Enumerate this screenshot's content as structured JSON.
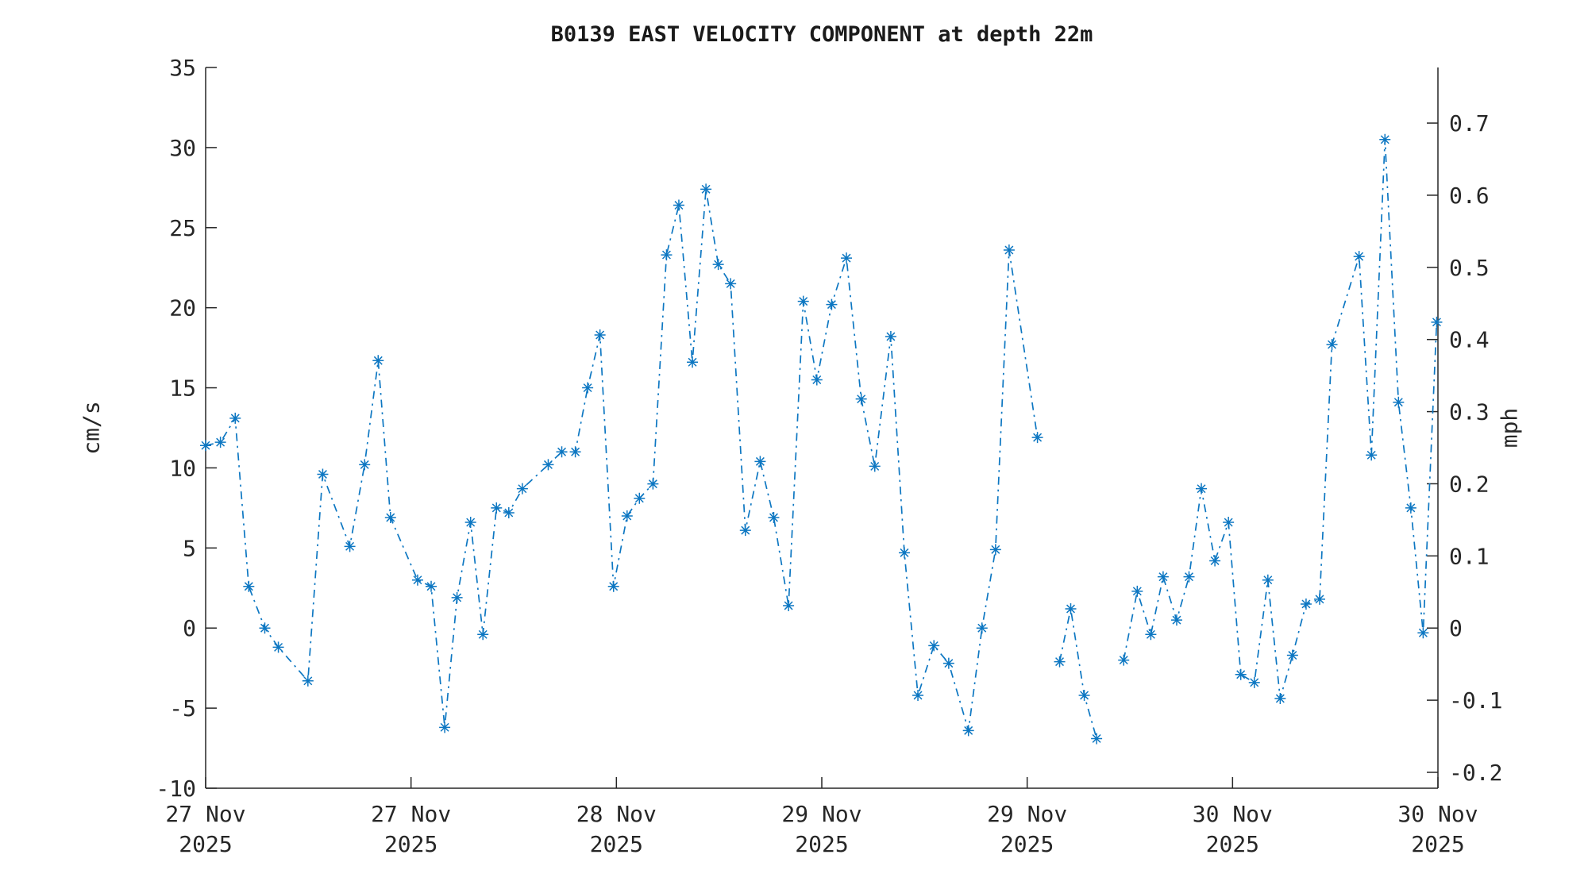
{
  "title": "B0139 EAST VELOCITY COMPONENT at depth 22m",
  "chart_data": {
    "type": "line",
    "title": "B0139 EAST VELOCITY COMPONENT at depth 22m",
    "line_style": "dash-dot",
    "marker": "asterisk",
    "series_color": "#0d77c2",
    "grid": false,
    "legend": "none",
    "left_axis": {
      "label": "cm/s",
      "min": -10,
      "max": 35,
      "ticks": [
        35,
        30,
        25,
        20,
        15,
        10,
        5,
        0,
        -5,
        -10
      ]
    },
    "right_axis": {
      "label": "mph",
      "ticks": [
        "0.7",
        "0.6",
        "0.5",
        "0.4",
        "0.3",
        "0.2",
        "0.1",
        "0",
        "-0.1",
        "-0.2"
      ],
      "cms_per_mph": 45.04
    },
    "x_axis": {
      "tick_labels": [
        [
          "27 Nov",
          "2025"
        ],
        [
          "27 Nov",
          "2025"
        ],
        [
          "28 Nov",
          "2025"
        ],
        [
          "29 Nov",
          "2025"
        ],
        [
          "29 Nov",
          "2025"
        ],
        [
          "30 Nov",
          "2025"
        ],
        [
          "30 Nov",
          "2025"
        ]
      ]
    },
    "series_name": "east velocity component (cm/s)",
    "x_unit": "percent of time axis from 27 Nov 2025 (left edge) to 30 Nov 2025 (right edge)",
    "segments": [
      [
        [
          0.0,
          11.4
        ],
        [
          1.2,
          11.6
        ],
        [
          2.4,
          13.1
        ],
        [
          3.5,
          2.6
        ],
        [
          4.8,
          0.0
        ],
        [
          5.9,
          -1.2
        ],
        [
          8.3,
          -3.3
        ],
        [
          9.5,
          9.6
        ],
        [
          11.7,
          5.1
        ],
        [
          12.9,
          10.2
        ],
        [
          14.0,
          16.7
        ],
        [
          15.0,
          6.9
        ],
        [
          17.2,
          3.0
        ],
        [
          18.3,
          2.6
        ],
        [
          19.4,
          -6.2
        ],
        [
          20.4,
          1.9
        ],
        [
          21.5,
          6.6
        ],
        [
          22.5,
          -0.4
        ],
        [
          23.6,
          7.5
        ],
        [
          24.6,
          7.2
        ],
        [
          25.7,
          8.7
        ],
        [
          27.8,
          10.2
        ],
        [
          28.9,
          11.0
        ],
        [
          30.0,
          11.0
        ],
        [
          31.0,
          15.0
        ],
        [
          32.0,
          18.3
        ],
        [
          33.1,
          2.6
        ],
        [
          34.2,
          7.0
        ],
        [
          35.2,
          8.1
        ],
        [
          36.3,
          9.0
        ],
        [
          37.4,
          23.3
        ],
        [
          38.4,
          26.4
        ],
        [
          39.5,
          16.6
        ],
        [
          40.6,
          27.4
        ],
        [
          41.6,
          22.7
        ],
        [
          42.6,
          21.5
        ],
        [
          43.8,
          6.1
        ],
        [
          45.0,
          10.4
        ],
        [
          46.1,
          6.9
        ],
        [
          47.3,
          1.4
        ],
        [
          48.5,
          20.4
        ],
        [
          49.6,
          15.5
        ],
        [
          50.8,
          20.2
        ],
        [
          52.0,
          23.1
        ],
        [
          53.2,
          14.3
        ],
        [
          54.3,
          10.1
        ],
        [
          55.6,
          18.2
        ],
        [
          56.7,
          4.7
        ],
        [
          57.8,
          -4.2
        ],
        [
          59.1,
          -1.1
        ],
        [
          60.3,
          -2.2
        ],
        [
          61.9,
          -6.4
        ],
        [
          63.0,
          0.0
        ],
        [
          64.1,
          4.9
        ],
        [
          65.2,
          23.6
        ],
        [
          67.5,
          11.9
        ]
      ],
      [
        [
          69.3,
          -2.1
        ],
        [
          70.2,
          1.2
        ],
        [
          71.3,
          -4.2
        ],
        [
          72.3,
          -6.9
        ]
      ],
      [
        [
          74.5,
          -2.0
        ],
        [
          75.6,
          2.3
        ],
        [
          76.7,
          -0.4
        ],
        [
          77.7,
          3.2
        ],
        [
          78.8,
          0.5
        ],
        [
          79.8,
          3.2
        ],
        [
          80.8,
          8.7
        ],
        [
          81.9,
          4.2
        ],
        [
          83.0,
          6.6
        ],
        [
          84.0,
          -2.9
        ],
        [
          85.1,
          -3.4
        ],
        [
          86.2,
          3.0
        ],
        [
          87.2,
          -4.4
        ],
        [
          88.2,
          -1.7
        ],
        [
          89.3,
          1.5
        ],
        [
          90.4,
          1.8
        ],
        [
          91.4,
          17.7
        ],
        [
          93.6,
          23.2
        ],
        [
          94.6,
          10.8
        ],
        [
          95.7,
          30.5
        ],
        [
          96.8,
          14.1
        ],
        [
          97.8,
          7.5
        ],
        [
          98.8,
          -0.3
        ],
        [
          99.9,
          19.1
        ]
      ]
    ]
  }
}
